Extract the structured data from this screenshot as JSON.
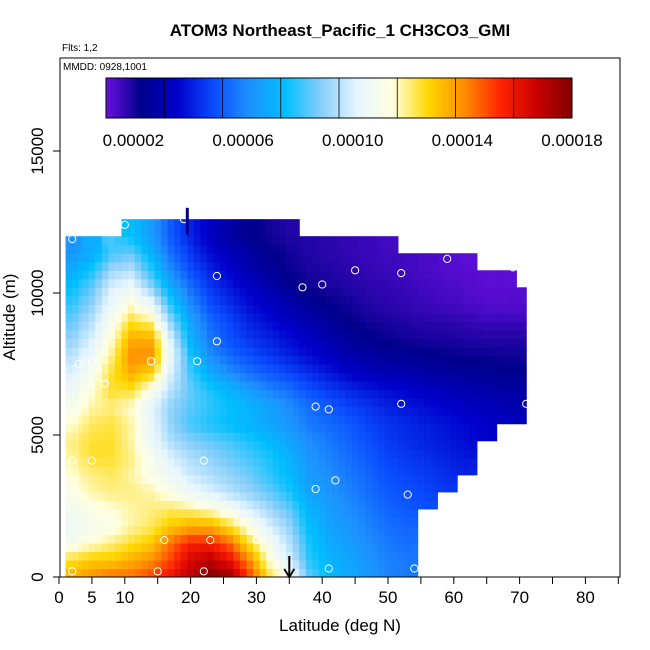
{
  "chart_data": {
    "type": "heatmap",
    "title": "ATOM3 Northeast_Pacific_1 CH3CO3_GMI",
    "subtitle_flights": "Flts: 1,2",
    "subtitle_dates": "MMDD: 0928,1001",
    "xlabel": "Latitude (deg N)",
    "ylabel": "Altitude (m)",
    "xlim": [
      0,
      85
    ],
    "ylim": [
      0,
      18000
    ],
    "x_ticks": [
      0,
      5,
      10,
      20,
      30,
      40,
      50,
      60,
      70,
      80
    ],
    "y_ticks": [
      0,
      5000,
      10000,
      15000
    ],
    "colorbar": {
      "min": 1e-05,
      "max": 0.00018,
      "ticks": [
        "0.00002",
        "0.00006",
        "0.00010",
        "0.00014",
        "0.00018"
      ],
      "tick_values": [
        2e-05,
        6e-05,
        0.0001,
        0.00014,
        0.00018
      ],
      "colors": [
        "#6a0fe0",
        "#00008b",
        "#0000cd",
        "#0a4bff",
        "#1e90ff",
        "#00bfff",
        "#87cefa",
        "#e6f5ff",
        "#ffffe0",
        "#ffd700",
        "#ff8c00",
        "#ff2400",
        "#cc0000",
        "#800000"
      ]
    },
    "field": {
      "lat_bounds": [
        1,
        71
      ],
      "alt_rows": [
        0,
        600,
        1200,
        1800,
        2400,
        3000,
        3600,
        4200,
        4800,
        5400,
        6000,
        6600,
        7200,
        7800,
        8400,
        9000,
        9600,
        10200,
        10800,
        11400,
        12000
      ],
      "lat_cols": [
        2,
        5,
        8,
        11,
        14,
        17,
        20,
        23,
        26,
        29,
        32,
        35,
        38,
        41,
        44,
        47,
        50,
        53,
        56,
        59,
        62,
        65,
        68,
        71
      ],
      "values": [
        [
          0.000135,
          0.00014,
          0.000145,
          0.000145,
          0.00015,
          0.00016,
          0.00017,
          0.00018,
          0.000175,
          0.00015,
          0.000125,
          0.00011,
          8.5e-05,
          7.5e-05,
          7e-05,
          6.5e-05,
          6e-05,
          5.8e-05,
          null,
          null,
          null,
          null,
          null,
          null
        ],
        [
          0.000125,
          0.00013,
          0.00013,
          0.000135,
          0.00014,
          0.00015,
          0.000165,
          0.00017,
          0.00016,
          0.00014,
          0.000115,
          0.0001,
          8e-05,
          7.2e-05,
          6.8e-05,
          6.4e-05,
          6e-05,
          5.8e-05,
          null,
          null,
          null,
          null,
          null,
          null
        ],
        [
          0.00011,
          0.000115,
          0.00012,
          0.000125,
          0.00013,
          0.000145,
          0.000155,
          0.000155,
          0.000145,
          0.000125,
          0.000108,
          9.5e-05,
          7.8e-05,
          7e-05,
          6.6e-05,
          6.2e-05,
          5.8e-05,
          5.6e-05,
          null,
          null,
          null,
          null,
          null,
          null
        ],
        [
          0.000105,
          0.00011,
          0.000112,
          0.000118,
          0.000122,
          0.00013,
          0.000135,
          0.000135,
          0.000125,
          0.000112,
          0.0001,
          9e-05,
          7.5e-05,
          6.8e-05,
          6.4e-05,
          6e-05,
          5.6e-05,
          5.4e-05,
          null,
          null,
          null,
          null,
          null,
          null
        ],
        [
          0.000108,
          0.000112,
          0.000115,
          0.000118,
          0.00012,
          0.000122,
          0.00012,
          0.000115,
          0.000108,
          0.0001,
          9.2e-05,
          8.5e-05,
          7.2e-05,
          6.6e-05,
          6.2e-05,
          5.8e-05,
          5.4e-05,
          5.2e-05,
          5e-05,
          null,
          null,
          null,
          null,
          null
        ],
        [
          0.000112,
          0.000118,
          0.00012,
          0.00012,
          0.000118,
          0.000112,
          0.000105,
          0.0001,
          9.5e-05,
          9e-05,
          8.5e-05,
          7.8e-05,
          6.8e-05,
          6.4e-05,
          6e-05,
          5.6e-05,
          5.2e-05,
          5e-05,
          4.8e-05,
          4.6e-05,
          null,
          null,
          null,
          null
        ],
        [
          0.000115,
          0.00012,
          0.000122,
          0.000118,
          0.000112,
          0.000105,
          9.8e-05,
          9.4e-05,
          9e-05,
          8.6e-05,
          8e-05,
          7.4e-05,
          6.6e-05,
          6.2e-05,
          5.8e-05,
          5.4e-05,
          5e-05,
          4.8e-05,
          4.6e-05,
          4.4e-05,
          4.2e-05,
          null,
          null,
          null
        ],
        [
          0.000118,
          0.000125,
          0.000125,
          0.00012,
          0.00011,
          0.0001,
          9.4e-05,
          9e-05,
          8.6e-05,
          8.2e-05,
          7.8e-05,
          7.2e-05,
          6.4e-05,
          6e-05,
          5.6e-05,
          5.2e-05,
          4.8e-05,
          4.6e-05,
          4.4e-05,
          4.2e-05,
          4e-05,
          null,
          null,
          null
        ],
        [
          0.00012,
          0.000125,
          0.000125,
          0.000118,
          0.000105,
          9.4e-05,
          8.8e-05,
          8.5e-05,
          8.2e-05,
          7.8e-05,
          7.4e-05,
          6.8e-05,
          6.2e-05,
          5.8e-05,
          5.4e-05,
          5e-05,
          4.6e-05,
          4.4e-05,
          4.2e-05,
          4e-05,
          3.8e-05,
          3.6e-05,
          null,
          null
        ],
        [
          0.000115,
          0.000122,
          0.000124,
          0.000118,
          0.000104,
          9e-05,
          8.2e-05,
          7.8e-05,
          7.5e-05,
          7.2e-05,
          6.8e-05,
          6.4e-05,
          5.8e-05,
          5.5e-05,
          5.2e-05,
          4.8e-05,
          4.5e-05,
          4.3e-05,
          4.1e-05,
          3.9e-05,
          3.7e-05,
          3.5e-05,
          3.4e-05,
          3.3e-05
        ],
        [
          0.00011,
          0.000118,
          0.00012,
          0.000115,
          0.000102,
          9e-05,
          8.4e-05,
          8e-05,
          7.6e-05,
          7.2e-05,
          6.8e-05,
          6.2e-05,
          5.6e-05,
          5.2e-05,
          4.8e-05,
          4.5e-05,
          4.2e-05,
          4e-05,
          3.8e-05,
          3.6e-05,
          3.4e-05,
          3.2e-05,
          3.1e-05,
          3e-05
        ],
        [
          0.000105,
          0.000115,
          0.000125,
          0.000125,
          0.000112,
          9.5e-05,
          8.5e-05,
          7.8e-05,
          7.2e-05,
          6.6e-05,
          6e-05,
          5.6e-05,
          5e-05,
          4.6e-05,
          4.3e-05,
          4e-05,
          3.8e-05,
          3.6e-05,
          3.4e-05,
          3.2e-05,
          3e-05,
          2.9e-05,
          2.8e-05,
          2.8e-05
        ],
        [
          0.0001,
          0.00011,
          0.000125,
          0.000135,
          0.000128,
          0.0001,
          8.2e-05,
          7e-05,
          6.2e-05,
          5.6e-05,
          5.2e-05,
          4.8e-05,
          4.4e-05,
          4e-05,
          3.6e-05,
          3.3e-05,
          3.1e-05,
          3e-05,
          2.8e-05,
          2.7e-05,
          2.6e-05,
          2.5e-05,
          2.4e-05,
          2.4e-05
        ],
        [
          9.5e-05,
          0.000105,
          0.00012,
          0.00014,
          0.00014,
          0.000105,
          7.8e-05,
          6.2e-05,
          5.5e-05,
          5e-05,
          4.6e-05,
          4.2e-05,
          3.8e-05,
          3.4e-05,
          3e-05,
          2.8e-05,
          2.6e-05,
          2.5e-05,
          2.4e-05,
          2.3e-05,
          2.2e-05,
          2.2e-05,
          2.1e-05,
          2.1e-05
        ],
        [
          9e-05,
          0.0001,
          0.000115,
          0.000135,
          0.000135,
          0.0001,
          7.2e-05,
          5.8e-05,
          5e-05,
          4.5e-05,
          4.2e-05,
          3.8e-05,
          3.4e-05,
          3e-05,
          2.6e-05,
          2.4e-05,
          2.2e-05,
          2.1e-05,
          2e-05,
          2e-05,
          1.9e-05,
          1.9e-05,
          1.9e-05,
          1.9e-05
        ],
        [
          8.5e-05,
          9.5e-05,
          0.00011,
          0.000125,
          0.00012,
          9e-05,
          6.8e-05,
          5.5e-05,
          4.8e-05,
          4.2e-05,
          3.8e-05,
          3.4e-05,
          3e-05,
          2.6e-05,
          2.3e-05,
          2.1e-05,
          2e-05,
          1.9e-05,
          1.8e-05,
          1.8e-05,
          1.7e-05,
          1.6e-05,
          1.6e-05,
          1.6e-05
        ],
        [
          8e-05,
          9e-05,
          0.000105,
          0.000115,
          0.000105,
          8e-05,
          6.2e-05,
          5e-05,
          4.4e-05,
          3.8e-05,
          3.4e-05,
          3e-05,
          2.6e-05,
          2.3e-05,
          2.1e-05,
          1.9e-05,
          1.8e-05,
          1.7e-05,
          1.6e-05,
          1.5e-05,
          1.4e-05,
          1.3e-05,
          1.3e-05,
          1.3e-05
        ],
        [
          7.5e-05,
          8.5e-05,
          0.0001,
          0.000105,
          9e-05,
          7e-05,
          5.6e-05,
          4.6e-05,
          4e-05,
          3.5e-05,
          3e-05,
          2.5e-05,
          2.2e-05,
          2e-05,
          1.9e-05,
          1.8e-05,
          1.7e-05,
          1.6e-05,
          1.5e-05,
          1.4e-05,
          1.3e-05,
          1.2e-05,
          1.2e-05,
          null
        ],
        [
          7e-05,
          7.8e-05,
          9.2e-05,
          9.5e-05,
          8e-05,
          6.2e-05,
          5e-05,
          4.2e-05,
          3.6e-05,
          3e-05,
          2.6e-05,
          2.2e-05,
          2e-05,
          1.9e-05,
          1.8e-05,
          1.7e-05,
          1.6e-05,
          1.5e-05,
          1.4e-05,
          1.3e-05,
          1.2e-05,
          null,
          null,
          null
        ],
        [
          6.4e-05,
          7e-05,
          8.2e-05,
          8.5e-05,
          7.2e-05,
          5.6e-05,
          4.6e-05,
          3.8e-05,
          3.2e-05,
          2.8e-05,
          2.4e-05,
          2.1e-05,
          1.9e-05,
          1.8e-05,
          1.7e-05,
          1.6e-05,
          1.5e-05,
          null,
          null,
          null,
          null,
          null,
          null,
          null
        ],
        [
          null,
          null,
          null,
          7.5e-05,
          6.6e-05,
          5.2e-05,
          4.2e-05,
          3.4e-05,
          2.8e-05,
          2.4e-05,
          2.1e-05,
          1.9e-05,
          null,
          null,
          null,
          null,
          null,
          null,
          null,
          null,
          null,
          null,
          null,
          null
        ]
      ]
    },
    "sample_points": [
      [
        2,
        200
      ],
      [
        15,
        200
      ],
      [
        22,
        200
      ],
      [
        41,
        300
      ],
      [
        54,
        300
      ],
      [
        16,
        1300
      ],
      [
        23,
        1300
      ],
      [
        30,
        1300
      ],
      [
        39,
        3100
      ],
      [
        42,
        3400
      ],
      [
        53,
        2900
      ],
      [
        2,
        4100
      ],
      [
        5,
        4100
      ],
      [
        14,
        4100
      ],
      [
        22,
        4100
      ],
      [
        39,
        6000
      ],
      [
        41,
        5900
      ],
      [
        52,
        6100
      ],
      [
        71,
        6100
      ],
      [
        0,
        5800
      ],
      [
        7,
        6800
      ],
      [
        3,
        7500
      ],
      [
        5,
        7600
      ],
      [
        14,
        7600
      ],
      [
        21,
        7600
      ],
      [
        24,
        8300
      ],
      [
        37,
        10200
      ],
      [
        40,
        10300
      ],
      [
        24,
        10600
      ],
      [
        45,
        10800
      ],
      [
        52,
        10700
      ],
      [
        59,
        11200
      ],
      [
        69,
        10900
      ],
      [
        2,
        11900
      ],
      [
        10,
        12400
      ],
      [
        19,
        12600
      ]
    ],
    "arrow_latitude": 35
  }
}
